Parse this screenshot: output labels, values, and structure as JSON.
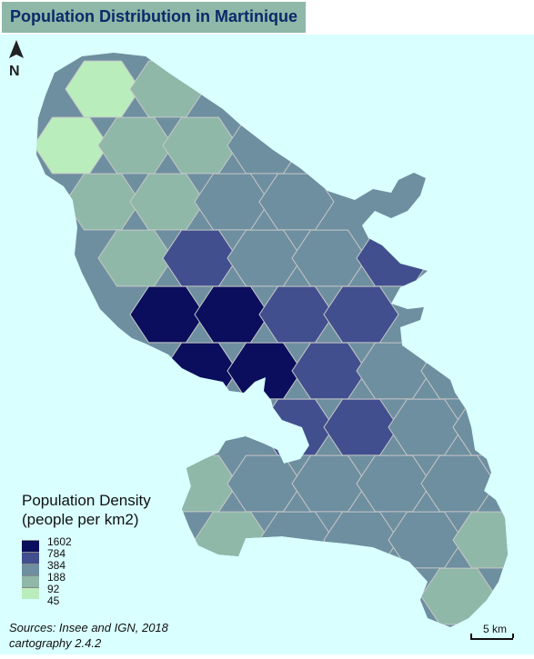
{
  "title": "Population Distribution in Martinique",
  "north_label": "N",
  "colors": {
    "sea": "#d9ffff",
    "hex_stroke": "#c8c8c8",
    "coast_land": "#6e8fa0",
    "title_bg": "#8fb8a8",
    "title_text": "#0a2a6a"
  },
  "legend": {
    "title_line1": "Population Density",
    "title_line2": "(people per km2)",
    "classes": [
      {
        "value": "1602",
        "color": "#0a0e5c"
      },
      {
        "value": "784",
        "color": "#414f8f"
      },
      {
        "value": "384",
        "color": "#6e8fa0"
      },
      {
        "value": "188",
        "color": "#8fb8a8"
      },
      {
        "value": "92",
        "color": "#b9edbc"
      },
      {
        "value": "45",
        "color": ""
      }
    ]
  },
  "sources": {
    "line1": "Sources: Insee and IGN, 2018",
    "line2": "cartography 2.4.2"
  },
  "scale_label": "5 km"
}
